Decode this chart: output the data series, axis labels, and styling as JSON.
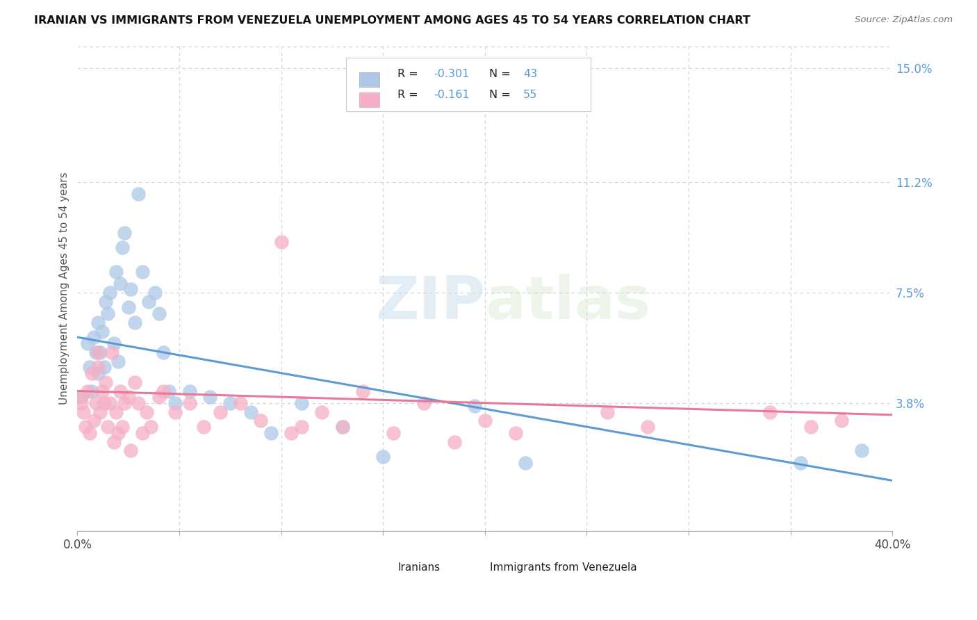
{
  "title": "IRANIAN VS IMMIGRANTS FROM VENEZUELA UNEMPLOYMENT AMONG AGES 45 TO 54 YEARS CORRELATION CHART",
  "source": "Source: ZipAtlas.com",
  "ylabel": "Unemployment Among Ages 45 to 54 years",
  "xlim": [
    0.0,
    0.4
  ],
  "ylim": [
    -0.005,
    0.158
  ],
  "xticks": [
    0.0,
    0.05,
    0.1,
    0.15,
    0.2,
    0.25,
    0.3,
    0.35,
    0.4
  ],
  "xticklabels": [
    "0.0%",
    "",
    "",
    "",
    "",
    "",
    "",
    "",
    "40.0%"
  ],
  "yticks_right": [
    0.0,
    0.038,
    0.075,
    0.112,
    0.15
  ],
  "ytick_labels_right": [
    "",
    "3.8%",
    "7.5%",
    "11.2%",
    "15.0%"
  ],
  "watermark": "ZIPatlas",
  "iranian_color": "#adc8e8",
  "venezuela_color": "#f5afc4",
  "iranian_line_color": "#5b9bd5",
  "venezuela_line_color": "#e8789a",
  "background_color": "#ffffff",
  "grid_color": "#d0d0d0",
  "iranians_x": [
    0.002,
    0.005,
    0.006,
    0.007,
    0.008,
    0.009,
    0.01,
    0.01,
    0.011,
    0.012,
    0.013,
    0.014,
    0.015,
    0.016,
    0.018,
    0.019,
    0.02,
    0.021,
    0.022,
    0.023,
    0.025,
    0.026,
    0.028,
    0.03,
    0.032,
    0.035,
    0.038,
    0.04,
    0.042,
    0.045,
    0.048,
    0.055,
    0.065,
    0.075,
    0.085,
    0.095,
    0.11,
    0.13,
    0.15,
    0.195,
    0.22,
    0.355,
    0.385
  ],
  "iranians_y": [
    0.04,
    0.058,
    0.05,
    0.042,
    0.06,
    0.055,
    0.065,
    0.048,
    0.055,
    0.062,
    0.05,
    0.072,
    0.068,
    0.075,
    0.058,
    0.082,
    0.052,
    0.078,
    0.09,
    0.095,
    0.07,
    0.076,
    0.065,
    0.108,
    0.082,
    0.072,
    0.075,
    0.068,
    0.055,
    0.042,
    0.038,
    0.042,
    0.04,
    0.038,
    0.035,
    0.028,
    0.038,
    0.03,
    0.02,
    0.037,
    0.018,
    0.018,
    0.022
  ],
  "venezuela_x": [
    0.001,
    0.002,
    0.003,
    0.004,
    0.005,
    0.006,
    0.007,
    0.008,
    0.009,
    0.01,
    0.01,
    0.011,
    0.012,
    0.013,
    0.014,
    0.015,
    0.016,
    0.017,
    0.018,
    0.019,
    0.02,
    0.021,
    0.022,
    0.023,
    0.025,
    0.026,
    0.028,
    0.03,
    0.032,
    0.034,
    0.036,
    0.04,
    0.042,
    0.048,
    0.055,
    0.062,
    0.07,
    0.08,
    0.09,
    0.1,
    0.105,
    0.11,
    0.12,
    0.13,
    0.14,
    0.155,
    0.17,
    0.185,
    0.2,
    0.215,
    0.26,
    0.28,
    0.34,
    0.36,
    0.375
  ],
  "venezuela_y": [
    0.04,
    0.038,
    0.035,
    0.03,
    0.042,
    0.028,
    0.048,
    0.032,
    0.038,
    0.05,
    0.055,
    0.035,
    0.042,
    0.038,
    0.045,
    0.03,
    0.038,
    0.055,
    0.025,
    0.035,
    0.028,
    0.042,
    0.03,
    0.038,
    0.04,
    0.022,
    0.045,
    0.038,
    0.028,
    0.035,
    0.03,
    0.04,
    0.042,
    0.035,
    0.038,
    0.03,
    0.035,
    0.038,
    0.032,
    0.092,
    0.028,
    0.03,
    0.035,
    0.03,
    0.042,
    0.028,
    0.038,
    0.025,
    0.032,
    0.028,
    0.035,
    0.03,
    0.035,
    0.03,
    0.032
  ]
}
